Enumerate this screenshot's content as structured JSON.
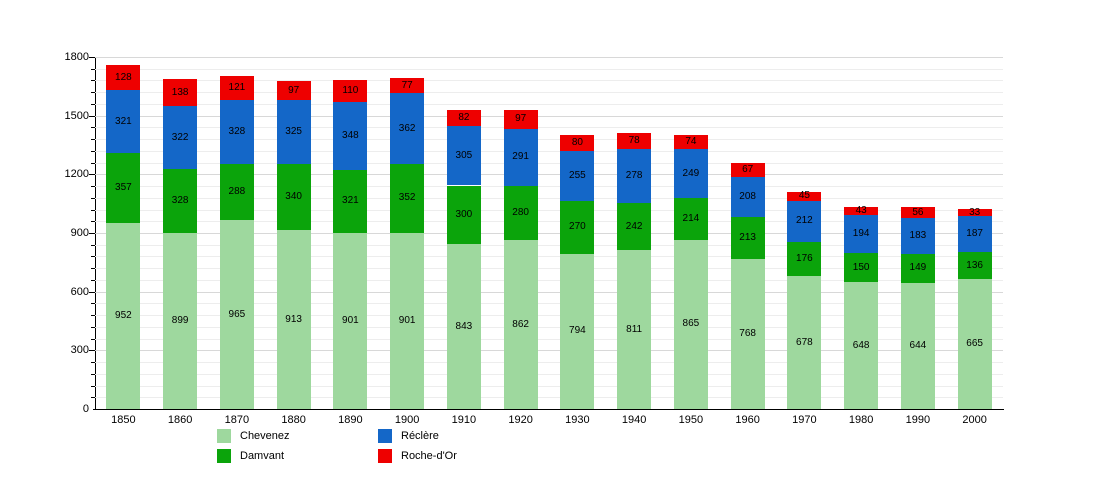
{
  "chart_data": {
    "type": "bar",
    "stacked": true,
    "title": "",
    "xlabel": "",
    "ylabel": "",
    "ylim": [
      0,
      1800
    ],
    "y_major_ticks": [
      0,
      300,
      600,
      900,
      1200,
      1500,
      1800
    ],
    "y_minor_step": 60,
    "grid": "horizontal",
    "legend_position": "bottom-left",
    "categories": [
      "1850",
      "1860",
      "1870",
      "1880",
      "1890",
      "1900",
      "1910",
      "1920",
      "1930",
      "1940",
      "1950",
      "1960",
      "1970",
      "1980",
      "1990",
      "2000"
    ],
    "series": [
      {
        "name": "Chevenez",
        "color": "#9ED89E",
        "values": [
          952,
          899,
          965,
          913,
          901,
          901,
          843,
          862,
          794,
          811,
          865,
          768,
          678,
          648,
          644,
          665
        ]
      },
      {
        "name": "Damvant",
        "color": "#0BA40B",
        "values": [
          357,
          328,
          288,
          340,
          321,
          352,
          300,
          280,
          270,
          242,
          214,
          213,
          176,
          150,
          149,
          136
        ]
      },
      {
        "name": "Réclère",
        "color": "#1467C8",
        "values": [
          321,
          322,
          328,
          325,
          348,
          362,
          305,
          291,
          255,
          278,
          249,
          208,
          212,
          194,
          183,
          187
        ]
      },
      {
        "name": "Roche-d'Or",
        "color": "#EE0000",
        "values": [
          128,
          138,
          121,
          97,
          110,
          77,
          82,
          97,
          80,
          78,
          74,
          67,
          45,
          43,
          56,
          33
        ]
      }
    ]
  }
}
